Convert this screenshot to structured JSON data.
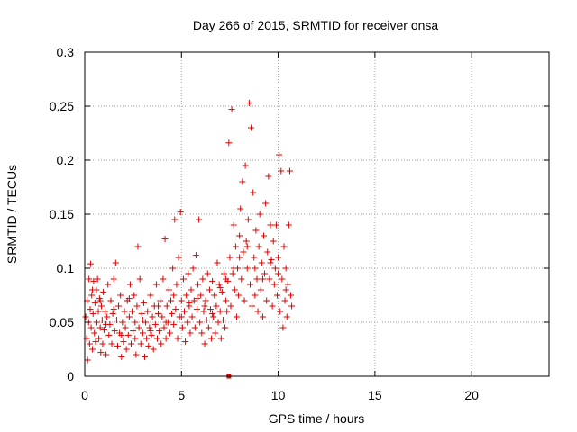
{
  "chart_data": {
    "type": "scatter",
    "title": "Day 266 of 2015, SRMTID for receiver onsa",
    "xlabel": "GPS time / hours",
    "ylabel": "SRMTID / TECUs",
    "xlim": [
      0,
      24
    ],
    "ylim": [
      0,
      0.3
    ],
    "x_ticks": [
      0,
      5,
      10,
      15,
      20
    ],
    "y_ticks": [
      0,
      0.05,
      0.1,
      0.15,
      0.2,
      0.25,
      0.3
    ],
    "grid": true,
    "marker": "+",
    "color": "#e00000",
    "series": [
      {
        "name": "SRMTID",
        "points": [
          [
            0.05,
            0.055
          ],
          [
            0.1,
            0.035
          ],
          [
            0.12,
            0.07
          ],
          [
            0.15,
            0.015
          ],
          [
            0.2,
            0.05
          ],
          [
            0.22,
            0.09
          ],
          [
            0.25,
            0.03
          ],
          [
            0.28,
            0.062
          ],
          [
            0.3,
            0.104
          ],
          [
            0.33,
            0.045
          ],
          [
            0.36,
            0.075
          ],
          [
            0.4,
            0.025
          ],
          [
            0.43,
            0.058
          ],
          [
            0.46,
            0.088
          ],
          [
            0.5,
            0.04
          ],
          [
            0.53,
            0.068
          ],
          [
            0.56,
            0.032
          ],
          [
            0.6,
            0.08
          ],
          [
            0.63,
            0.05
          ],
          [
            0.66,
            0.09
          ],
          [
            0.7,
            0.06
          ],
          [
            0.73,
            0.035
          ],
          [
            0.76,
            0.072
          ],
          [
            0.8,
            0.045
          ],
          [
            0.83,
            0.022
          ],
          [
            0.86,
            0.065
          ],
          [
            0.9,
            0.052
          ],
          [
            0.93,
            0.03
          ],
          [
            0.96,
            0.078
          ],
          [
            1.0,
            0.043
          ],
          [
            1.05,
            0.06
          ],
          [
            1.1,
            0.02
          ],
          [
            1.15,
            0.055
          ],
          [
            1.2,
            0.085
          ],
          [
            1.25,
            0.038
          ],
          [
            1.3,
            0.048
          ],
          [
            1.35,
            0.07
          ],
          [
            1.4,
            0.03
          ],
          [
            1.45,
            0.058
          ],
          [
            1.5,
            0.09
          ],
          [
            1.55,
            0.042
          ],
          [
            1.6,
            0.105
          ],
          [
            1.65,
            0.052
          ],
          [
            1.7,
            0.028
          ],
          [
            1.75,
            0.065
          ],
          [
            1.8,
            0.04
          ],
          [
            1.85,
            0.075
          ],
          [
            1.9,
            0.018
          ],
          [
            1.95,
            0.05
          ],
          [
            2.0,
            0.032
          ],
          [
            2.05,
            0.06
          ],
          [
            2.1,
            0.045
          ],
          [
            2.15,
            0.025
          ],
          [
            2.2,
            0.07
          ],
          [
            2.25,
            0.038
          ],
          [
            2.3,
            0.055
          ],
          [
            2.35,
            0.085
          ],
          [
            2.4,
            0.03
          ],
          [
            2.45,
            0.06
          ],
          [
            2.5,
            0.042
          ],
          [
            2.55,
            0.075
          ],
          [
            2.6,
            0.05
          ],
          [
            2.65,
            0.02
          ],
          [
            2.7,
            0.065
          ],
          [
            2.75,
            0.12
          ],
          [
            2.8,
            0.045
          ],
          [
            2.85,
            0.09
          ],
          [
            2.9,
            0.03
          ],
          [
            2.95,
            0.058
          ],
          [
            3.0,
            0.04
          ],
          [
            3.05,
            0.068
          ],
          [
            3.1,
            0.018
          ],
          [
            3.15,
            0.05
          ],
          [
            3.2,
            0.035
          ],
          [
            3.25,
            0.06
          ],
          [
            3.3,
            0.028
          ],
          [
            3.35,
            0.045
          ],
          [
            3.4,
            0.075
          ],
          [
            3.45,
            0.038
          ],
          [
            3.5,
            0.055
          ],
          [
            3.55,
            0.025
          ],
          [
            3.6,
            0.065
          ],
          [
            3.65,
            0.048
          ],
          [
            3.7,
            0.085
          ],
          [
            3.75,
            0.035
          ],
          [
            3.8,
            0.058
          ],
          [
            3.85,
            0.042
          ],
          [
            3.9,
            0.07
          ],
          [
            3.95,
            0.03
          ],
          [
            4.0,
            0.055
          ],
          [
            4.05,
            0.09
          ],
          [
            4.1,
            0.045
          ],
          [
            4.15,
            0.127
          ],
          [
            4.2,
            0.035
          ],
          [
            4.25,
            0.065
          ],
          [
            4.3,
            0.05
          ],
          [
            4.35,
            0.08
          ],
          [
            4.4,
            0.04
          ],
          [
            4.45,
            0.07
          ],
          [
            4.5,
            0.058
          ],
          [
            4.55,
            0.1
          ],
          [
            4.6,
            0.048
          ],
          [
            4.65,
            0.145
          ],
          [
            4.7,
            0.062
          ],
          [
            4.75,
            0.085
          ],
          [
            4.8,
            0.035
          ],
          [
            4.85,
            0.11
          ],
          [
            4.9,
            0.055
          ],
          [
            4.95,
            0.152
          ],
          [
            5.0,
            0.07
          ],
          [
            5.05,
            0.045
          ],
          [
            5.1,
            0.09
          ],
          [
            5.15,
            0.06
          ],
          [
            5.2,
            0.032
          ],
          [
            5.25,
            0.075
          ],
          [
            5.3,
            0.05
          ],
          [
            5.35,
            0.095
          ],
          [
            5.4,
            0.065
          ],
          [
            5.45,
            0.04
          ],
          [
            5.5,
            0.08
          ],
          [
            5.55,
            0.055
          ],
          [
            5.6,
            0.1
          ],
          [
            5.65,
            0.07
          ],
          [
            5.7,
            0.045
          ],
          [
            5.75,
            0.112
          ],
          [
            5.8,
            0.062
          ],
          [
            5.85,
            0.085
          ],
          [
            5.9,
            0.145
          ],
          [
            5.95,
            0.05
          ],
          [
            6.0,
            0.075
          ],
          [
            6.05,
            0.04
          ],
          [
            6.1,
            0.09
          ],
          [
            6.15,
            0.06
          ],
          [
            6.2,
            0.03
          ],
          [
            6.25,
            0.07
          ],
          [
            6.3,
            0.052
          ],
          [
            6.35,
            0.095
          ],
          [
            6.4,
            0.045
          ],
          [
            6.45,
            0.08
          ],
          [
            6.5,
            0.062
          ],
          [
            6.55,
            0.035
          ],
          [
            6.6,
            0.088
          ],
          [
            6.65,
            0.055
          ],
          [
            6.7,
            0.075
          ],
          [
            6.75,
            0.04
          ],
          [
            6.8,
            0.065
          ],
          [
            6.85,
            0.105
          ],
          [
            6.9,
            0.05
          ],
          [
            6.95,
            0.085
          ],
          [
            7.0,
            0.06
          ],
          [
            7.05,
            0.035
          ],
          [
            7.1,
            0.078
          ],
          [
            7.15,
            0.052
          ],
          [
            7.2,
            0.095
          ],
          [
            7.25,
            0.045
          ],
          [
            7.3,
            0.07
          ],
          [
            7.35,
            0.06
          ],
          [
            7.4,
            0.088
          ],
          [
            7.45,
            0.216
          ],
          [
            7.5,
            0.11
          ],
          [
            7.55,
            0.065
          ],
          [
            7.6,
            0.247
          ],
          [
            7.65,
            0.095
          ],
          [
            7.7,
            0.14
          ],
          [
            7.75,
            0.08
          ],
          [
            7.8,
            0.12
          ],
          [
            7.85,
            0.055
          ],
          [
            7.9,
            0.1
          ],
          [
            7.95,
            0.075
          ],
          [
            8.0,
            0.13
          ],
          [
            8.05,
            0.155
          ],
          [
            8.1,
            0.09
          ],
          [
            8.15,
            0.18
          ],
          [
            8.2,
            0.115
          ],
          [
            8.25,
            0.07
          ],
          [
            8.3,
            0.195
          ],
          [
            8.35,
            0.125
          ],
          [
            8.4,
            0.1
          ],
          [
            8.45,
            0.145
          ],
          [
            8.5,
            0.253
          ],
          [
            8.55,
            0.085
          ],
          [
            8.6,
            0.23
          ],
          [
            8.65,
            0.065
          ],
          [
            8.7,
            0.17
          ],
          [
            8.75,
            0.11
          ],
          [
            8.8,
            0.075
          ],
          [
            8.85,
            0.135
          ],
          [
            8.9,
            0.09
          ],
          [
            8.95,
            0.06
          ],
          [
            9.0,
            0.12
          ],
          [
            9.05,
            0.15
          ],
          [
            9.1,
            0.08
          ],
          [
            9.15,
            0.105
          ],
          [
            9.2,
            0.055
          ],
          [
            9.25,
            0.13
          ],
          [
            9.3,
            0.095
          ],
          [
            9.35,
            0.16
          ],
          [
            9.4,
            0.07
          ],
          [
            9.45,
            0.115
          ],
          [
            9.5,
            0.185
          ],
          [
            9.55,
            0.09
          ],
          [
            9.6,
            0.14
          ],
          [
            9.65,
            0.108
          ],
          [
            9.7,
            0.065
          ],
          [
            9.75,
            0.125
          ],
          [
            9.8,
            0.085
          ],
          [
            9.85,
            0.1
          ],
          [
            9.9,
            0.14
          ],
          [
            9.95,
            0.075
          ],
          [
            10.0,
            0.11
          ],
          [
            10.05,
            0.205
          ],
          [
            10.1,
            0.06
          ],
          [
            10.15,
            0.19
          ],
          [
            10.2,
            0.09
          ],
          [
            10.25,
            0.045
          ],
          [
            10.3,
            0.12
          ],
          [
            10.35,
            0.07
          ],
          [
            10.4,
            0.1
          ],
          [
            10.45,
            0.055
          ],
          [
            10.5,
            0.085
          ],
          [
            10.55,
            0.14
          ],
          [
            10.6,
            0.19
          ],
          [
            10.65,
            0.075
          ],
          [
            10.7,
            0.065
          ],
          [
            0.4,
            0.08
          ],
          [
            0.8,
            0.07
          ],
          [
            1.1,
            0.048
          ],
          [
            1.5,
            0.062
          ],
          [
            1.9,
            0.038
          ],
          [
            2.3,
            0.072
          ],
          [
            2.6,
            0.035
          ],
          [
            3.0,
            0.052
          ],
          [
            3.4,
            0.042
          ],
          [
            3.8,
            0.065
          ],
          [
            4.2,
            0.05
          ],
          [
            4.6,
            0.075
          ],
          [
            5.0,
            0.055
          ],
          [
            5.4,
            0.068
          ],
          [
            5.8,
            0.072
          ],
          [
            6.2,
            0.065
          ],
          [
            6.6,
            0.058
          ],
          [
            7.0,
            0.082
          ],
          [
            7.3,
            0.09
          ],
          [
            7.7,
            0.1
          ],
          [
            8.0,
            0.11
          ],
          [
            8.4,
            0.12
          ],
          [
            8.8,
            0.1
          ],
          [
            9.2,
            0.09
          ],
          [
            9.6,
            0.105
          ],
          [
            10.0,
            0.095
          ],
          [
            10.4,
            0.08
          ]
        ]
      }
    ],
    "marker_square": [
      7.45,
      0.0
    ]
  }
}
